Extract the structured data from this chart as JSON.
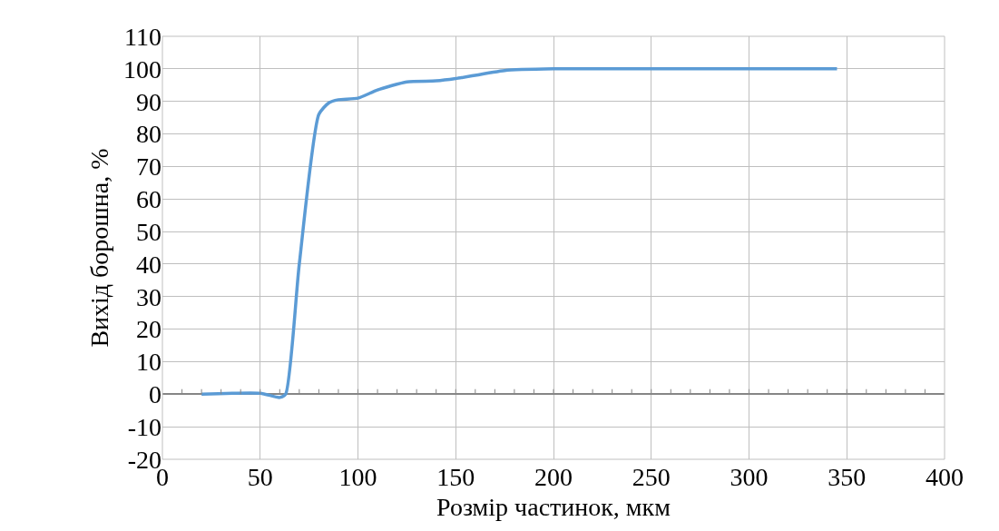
{
  "chart_data": {
    "type": "line",
    "xlabel": "Розмір частинок, мкм",
    "ylabel": "Вихід борошна, %",
    "x": [
      20,
      50,
      60,
      63,
      70,
      80,
      85,
      90,
      100,
      110,
      125,
      140,
      150,
      175,
      200,
      250,
      300,
      345
    ],
    "series": [
      {
        "color": "#5b9bd5",
        "values": [
          0,
          0.3,
          -1,
          0,
          40,
          86,
          89.5,
          90.5,
          91,
          93.5,
          96,
          96.3,
          97,
          99.5,
          100,
          100,
          100,
          100
        ]
      }
    ],
    "xlim": [
      0,
      400
    ],
    "xticks": [
      0,
      50,
      100,
      150,
      200,
      250,
      300,
      350,
      400
    ],
    "ylim": [
      -20,
      110
    ],
    "yticks": [
      -20,
      -10,
      0,
      10,
      20,
      30,
      40,
      50,
      60,
      70,
      80,
      90,
      100,
      110
    ],
    "grid": true,
    "legend": false,
    "marker": "none",
    "line_style": "solid"
  }
}
